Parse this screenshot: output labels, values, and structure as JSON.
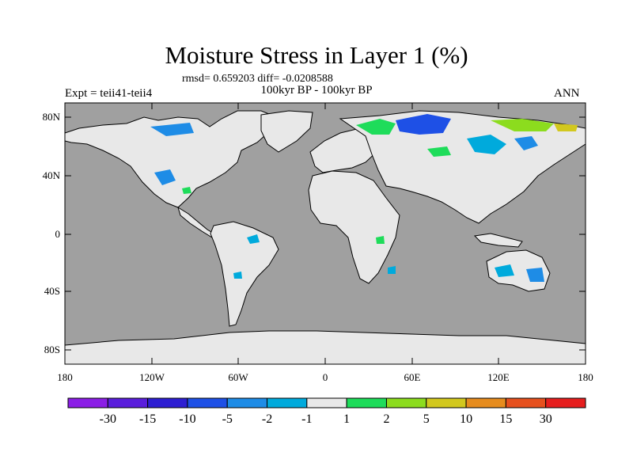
{
  "title": "Moisture Stress in Layer 1 (%)",
  "stats": "rmsd= 0.659203 diff= -0.0208588",
  "left_string": "Expt = teii41-teii4",
  "center_string": "100kyr BP - 100kyr BP",
  "right_string": "ANN",
  "lat_labels": [
    "80N",
    "40N",
    "0",
    "40S",
    "80S"
  ],
  "lon_labels": [
    "180",
    "120W",
    "60W",
    "0",
    "60E",
    "120E",
    "180"
  ],
  "colorbar": {
    "colors": [
      "#8b1ee6",
      "#5a1edc",
      "#2d1ed2",
      "#1e50e6",
      "#1e8ce6",
      "#00aadc",
      "#e8e8e8",
      "#1edc5a",
      "#8cdc1e",
      "#d2c81e",
      "#e68c1e",
      "#e6501e",
      "#e61e1e"
    ],
    "labels": [
      "-30",
      "-15",
      "-10",
      "-5",
      "-2",
      "-1",
      "1",
      "2",
      "5",
      "10",
      "15",
      "30"
    ]
  },
  "colors": {
    "ocean": "#a0a0a0",
    "land": "#e8e8e8"
  }
}
